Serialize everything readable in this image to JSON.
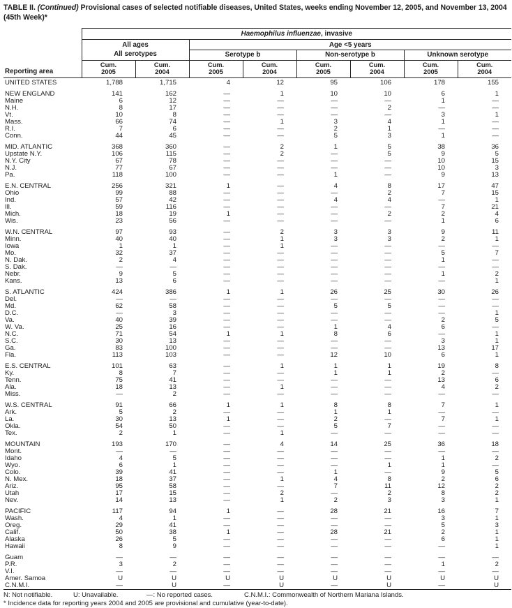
{
  "title": {
    "label": "TABLE II.",
    "continued": "(Continued)",
    "text": "Provisional cases of selected notifiable diseases, United States, weeks ending November 12, 2005, and November 13, 2004",
    "week": "(45th Week)*"
  },
  "header": {
    "reporting_area": "Reporting area",
    "disease_name": "Haemophilus influenzae",
    "disease_suffix": ", invasive",
    "all_ages": "All ages",
    "age_under_5": "Age <5 years",
    "all_serotypes": "All serotypes",
    "serotype_b": "Serotype b",
    "non_serotype_b": "Non-serotype b",
    "unknown_serotype": "Unknown serotype",
    "cum": "Cum.",
    "years": [
      "2005",
      "2004",
      "2005",
      "2004",
      "2005",
      "2004",
      "2005",
      "2004"
    ]
  },
  "chart_data": {
    "type": "table",
    "title": "Haemophilus influenzae, invasive — provisional cumulative cases",
    "columns": [
      "All ages All serotypes Cum. 2005",
      "All ages All serotypes Cum. 2004",
      "Age <5 Serotype b Cum. 2005",
      "Age <5 Serotype b Cum. 2004",
      "Age <5 Non-serotype b Cum. 2005",
      "Age <5 Non-serotype b Cum. 2004",
      "Age <5 Unknown serotype Cum. 2005",
      "Age <5 Unknown serotype Cum. 2004"
    ]
  },
  "table": {
    "rows": [
      {
        "area": "UNITED STATES",
        "first": true,
        "values": [
          "1,788",
          "1,715",
          "4",
          "12",
          "95",
          "106",
          "178",
          "155"
        ]
      },
      {
        "area": "NEW ENGLAND",
        "gap": true,
        "values": [
          "141",
          "162",
          "—",
          "1",
          "10",
          "10",
          "6",
          "1"
        ]
      },
      {
        "area": "Maine",
        "values": [
          "6",
          "12",
          "—",
          "—",
          "—",
          "—",
          "1",
          "—"
        ]
      },
      {
        "area": "N.H.",
        "values": [
          "8",
          "17",
          "—",
          "—",
          "—",
          "2",
          "—",
          "—"
        ]
      },
      {
        "area": "Vt.",
        "values": [
          "10",
          "8",
          "—",
          "—",
          "—",
          "—",
          "3",
          "1"
        ]
      },
      {
        "area": "Mass.",
        "values": [
          "66",
          "74",
          "—",
          "1",
          "3",
          "4",
          "1",
          "—"
        ]
      },
      {
        "area": "R.I.",
        "values": [
          "7",
          "6",
          "—",
          "—",
          "2",
          "1",
          "—",
          "—"
        ]
      },
      {
        "area": "Conn.",
        "values": [
          "44",
          "45",
          "—",
          "—",
          "5",
          "3",
          "1",
          "—"
        ]
      },
      {
        "area": "MID. ATLANTIC",
        "gap": true,
        "values": [
          "368",
          "360",
          "—",
          "2",
          "1",
          "5",
          "38",
          "36"
        ]
      },
      {
        "area": "Upstate N.Y.",
        "values": [
          "106",
          "115",
          "—",
          "2",
          "—",
          "5",
          "9",
          "5"
        ]
      },
      {
        "area": "N.Y. City",
        "values": [
          "67",
          "78",
          "—",
          "—",
          "—",
          "—",
          "10",
          "15"
        ]
      },
      {
        "area": "N.J.",
        "values": [
          "77",
          "67",
          "—",
          "—",
          "—",
          "—",
          "10",
          "3"
        ]
      },
      {
        "area": "Pa.",
        "values": [
          "118",
          "100",
          "—",
          "—",
          "1",
          "—",
          "9",
          "13"
        ]
      },
      {
        "area": "E.N. CENTRAL",
        "gap": true,
        "values": [
          "256",
          "321",
          "1",
          "—",
          "4",
          "8",
          "17",
          "47"
        ]
      },
      {
        "area": "Ohio",
        "values": [
          "99",
          "88",
          "—",
          "—",
          "—",
          "2",
          "7",
          "15"
        ]
      },
      {
        "area": "Ind.",
        "values": [
          "57",
          "42",
          "—",
          "—",
          "4",
          "4",
          "—",
          "1"
        ]
      },
      {
        "area": "Ill.",
        "values": [
          "59",
          "116",
          "—",
          "—",
          "—",
          "—",
          "7",
          "21"
        ]
      },
      {
        "area": "Mich.",
        "values": [
          "18",
          "19",
          "1",
          "—",
          "—",
          "2",
          "2",
          "4"
        ]
      },
      {
        "area": "Wis.",
        "values": [
          "23",
          "56",
          "—",
          "—",
          "—",
          "—",
          "1",
          "6"
        ]
      },
      {
        "area": "W.N. CENTRAL",
        "gap": true,
        "values": [
          "97",
          "93",
          "—",
          "2",
          "3",
          "3",
          "9",
          "11"
        ]
      },
      {
        "area": "Minn.",
        "values": [
          "40",
          "40",
          "—",
          "1",
          "3",
          "3",
          "2",
          "1"
        ]
      },
      {
        "area": "Iowa",
        "values": [
          "1",
          "1",
          "—",
          "1",
          "—",
          "—",
          "—",
          "—"
        ]
      },
      {
        "area": "Mo.",
        "values": [
          "32",
          "37",
          "—",
          "—",
          "—",
          "—",
          "5",
          "7"
        ]
      },
      {
        "area": "N. Dak.",
        "values": [
          "2",
          "4",
          "—",
          "—",
          "—",
          "—",
          "1",
          "—"
        ]
      },
      {
        "area": "S. Dak.",
        "values": [
          "—",
          "—",
          "—",
          "—",
          "—",
          "—",
          "—",
          "—"
        ]
      },
      {
        "area": "Nebr.",
        "values": [
          "9",
          "5",
          "—",
          "—",
          "—",
          "—",
          "1",
          "2"
        ]
      },
      {
        "area": "Kans.",
        "values": [
          "13",
          "6",
          "—",
          "—",
          "—",
          "—",
          "—",
          "1"
        ]
      },
      {
        "area": "S. ATLANTIC",
        "gap": true,
        "values": [
          "424",
          "386",
          "1",
          "1",
          "26",
          "25",
          "30",
          "26"
        ]
      },
      {
        "area": "Del.",
        "values": [
          "—",
          "—",
          "—",
          "—",
          "—",
          "—",
          "—",
          "—"
        ]
      },
      {
        "area": "Md.",
        "values": [
          "62",
          "58",
          "—",
          "—",
          "5",
          "5",
          "—",
          "—"
        ]
      },
      {
        "area": "D.C.",
        "values": [
          "—",
          "3",
          "—",
          "—",
          "—",
          "—",
          "—",
          "1"
        ]
      },
      {
        "area": "Va.",
        "values": [
          "40",
          "39",
          "—",
          "—",
          "—",
          "—",
          "2",
          "5"
        ]
      },
      {
        "area": "W. Va.",
        "values": [
          "25",
          "16",
          "—",
          "—",
          "1",
          "4",
          "6",
          "—"
        ]
      },
      {
        "area": "N.C.",
        "values": [
          "71",
          "54",
          "1",
          "1",
          "8",
          "6",
          "—",
          "1"
        ]
      },
      {
        "area": "S.C.",
        "values": [
          "30",
          "13",
          "—",
          "—",
          "—",
          "—",
          "3",
          "1"
        ]
      },
      {
        "area": "Ga.",
        "values": [
          "83",
          "100",
          "—",
          "—",
          "—",
          "—",
          "13",
          "17"
        ]
      },
      {
        "area": "Fla.",
        "values": [
          "113",
          "103",
          "—",
          "—",
          "12",
          "10",
          "6",
          "1"
        ]
      },
      {
        "area": "E.S. CENTRAL",
        "gap": true,
        "values": [
          "101",
          "63",
          "—",
          "1",
          "1",
          "1",
          "19",
          "8"
        ]
      },
      {
        "area": "Ky.",
        "values": [
          "8",
          "7",
          "—",
          "—",
          "1",
          "1",
          "2",
          "—"
        ]
      },
      {
        "area": "Tenn.",
        "values": [
          "75",
          "41",
          "—",
          "—",
          "—",
          "—",
          "13",
          "6"
        ]
      },
      {
        "area": "Ala.",
        "values": [
          "18",
          "13",
          "—",
          "1",
          "—",
          "—",
          "4",
          "2"
        ]
      },
      {
        "area": "Miss.",
        "values": [
          "—",
          "2",
          "—",
          "—",
          "—",
          "—",
          "—",
          "—"
        ]
      },
      {
        "area": "W.S. CENTRAL",
        "gap": true,
        "values": [
          "91",
          "66",
          "1",
          "1",
          "8",
          "8",
          "7",
          "1"
        ]
      },
      {
        "area": "Ark.",
        "values": [
          "5",
          "2",
          "—",
          "—",
          "1",
          "1",
          "—",
          "—"
        ]
      },
      {
        "area": "La.",
        "values": [
          "30",
          "13",
          "1",
          "—",
          "2",
          "—",
          "7",
          "1"
        ]
      },
      {
        "area": "Okla.",
        "values": [
          "54",
          "50",
          "—",
          "—",
          "5",
          "7",
          "—",
          "—"
        ]
      },
      {
        "area": "Tex.",
        "values": [
          "2",
          "1",
          "—",
          "1",
          "—",
          "—",
          "—",
          "—"
        ]
      },
      {
        "area": "MOUNTAIN",
        "gap": true,
        "values": [
          "193",
          "170",
          "—",
          "4",
          "14",
          "25",
          "36",
          "18"
        ]
      },
      {
        "area": "Mont.",
        "values": [
          "—",
          "—",
          "—",
          "—",
          "—",
          "—",
          "—",
          "—"
        ]
      },
      {
        "area": "Idaho",
        "values": [
          "4",
          "5",
          "—",
          "—",
          "—",
          "—",
          "1",
          "2"
        ]
      },
      {
        "area": "Wyo.",
        "values": [
          "6",
          "1",
          "—",
          "—",
          "—",
          "1",
          "1",
          "—"
        ]
      },
      {
        "area": "Colo.",
        "values": [
          "39",
          "41",
          "—",
          "—",
          "1",
          "—",
          "9",
          "5"
        ]
      },
      {
        "area": "N. Mex.",
        "values": [
          "18",
          "37",
          "—",
          "1",
          "4",
          "8",
          "2",
          "6"
        ]
      },
      {
        "area": "Ariz.",
        "values": [
          "95",
          "58",
          "—",
          "—",
          "7",
          "11",
          "12",
          "2"
        ]
      },
      {
        "area": "Utah",
        "values": [
          "17",
          "15",
          "—",
          "2",
          "—",
          "2",
          "8",
          "2"
        ]
      },
      {
        "area": "Nev.",
        "values": [
          "14",
          "13",
          "—",
          "1",
          "2",
          "3",
          "3",
          "1"
        ]
      },
      {
        "area": "PACIFIC",
        "gap": true,
        "values": [
          "117",
          "94",
          "1",
          "—",
          "28",
          "21",
          "16",
          "7"
        ]
      },
      {
        "area": "Wash.",
        "values": [
          "4",
          "1",
          "—",
          "—",
          "—",
          "—",
          "3",
          "1"
        ]
      },
      {
        "area": "Oreg.",
        "values": [
          "29",
          "41",
          "—",
          "—",
          "—",
          "—",
          "5",
          "3"
        ]
      },
      {
        "area": "Calif.",
        "values": [
          "50",
          "38",
          "1",
          "—",
          "28",
          "21",
          "2",
          "1"
        ]
      },
      {
        "area": "Alaska",
        "values": [
          "26",
          "5",
          "—",
          "—",
          "—",
          "—",
          "6",
          "1"
        ]
      },
      {
        "area": "Hawaii",
        "values": [
          "8",
          "9",
          "—",
          "—",
          "—",
          "—",
          "—",
          "1"
        ]
      },
      {
        "area": "Guam",
        "gap": true,
        "values": [
          "—",
          "—",
          "—",
          "—",
          "—",
          "—",
          "—",
          "—"
        ]
      },
      {
        "area": "P.R.",
        "values": [
          "3",
          "2",
          "—",
          "—",
          "—",
          "—",
          "1",
          "2"
        ]
      },
      {
        "area": "V.I.",
        "values": [
          "—",
          "—",
          "—",
          "—",
          "—",
          "—",
          "—",
          "—"
        ]
      },
      {
        "area": "Amer. Samoa",
        "values": [
          "U",
          "U",
          "U",
          "U",
          "U",
          "U",
          "U",
          "U"
        ]
      },
      {
        "area": "C.N.M.I.",
        "values": [
          "—",
          "U",
          "—",
          "U",
          "—",
          "U",
          "—",
          "U"
        ]
      }
    ]
  },
  "footnotes": {
    "legend": [
      "N: Not notifiable.",
      "U: Unavailable.",
      "—: No reported cases.",
      "C.N.M.I.: Commonwealth of Northern Mariana Islands."
    ],
    "note": "* Incidence data for reporting years 2004 and 2005 are provisional and cumulative (year-to-date)."
  }
}
